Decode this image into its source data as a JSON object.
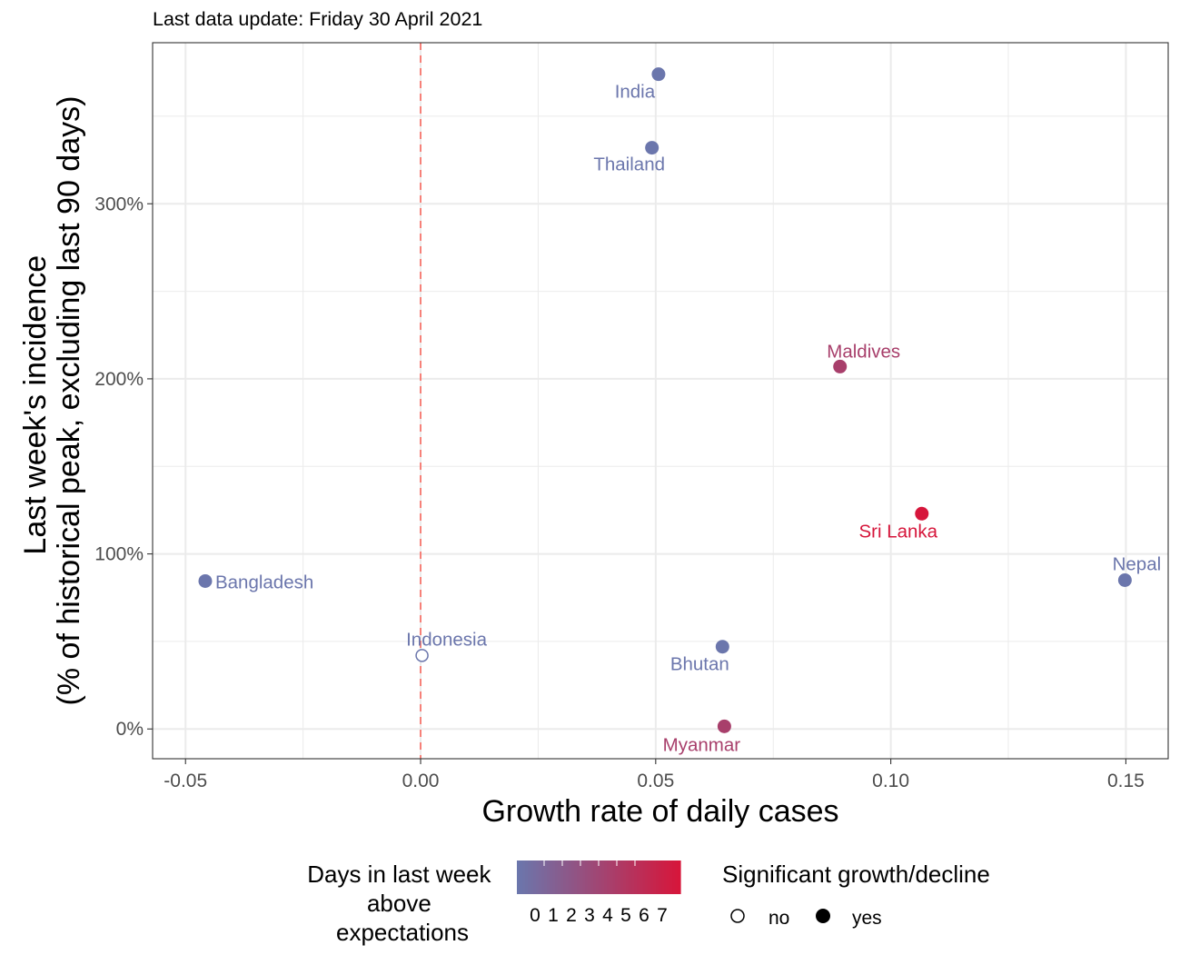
{
  "subtitle": "Last data update: Friday 30 April 2021",
  "chart_data": {
    "type": "scatter",
    "xlabel": "Growth rate of daily cases",
    "ylabel_line1": "Last week's incidence",
    "ylabel_line2": "(% of historical peak, excluding last 90 days)",
    "xlim": [
      -0.057,
      0.159
    ],
    "ylim": [
      -17,
      392
    ],
    "x_ticks": [
      -0.05,
      0.0,
      0.05,
      0.1,
      0.15
    ],
    "x_tick_labels": [
      "-0.05",
      "0.00",
      "0.05",
      "0.10",
      "0.15"
    ],
    "y_ticks": [
      0,
      100,
      200,
      300
    ],
    "y_tick_labels": [
      "0%",
      "100%",
      "200%",
      "300%"
    ],
    "reference_line": {
      "x": 0,
      "color": "#f8766d",
      "style": "dashed"
    },
    "grid": true,
    "points": [
      {
        "name": "India",
        "x": 0.0506,
        "y": 374,
        "days": 0,
        "significant": true
      },
      {
        "name": "Thailand",
        "x": 0.0492,
        "y": 332,
        "days": 0,
        "significant": true
      },
      {
        "name": "Maldives",
        "x": 0.0892,
        "y": 207,
        "days": 4,
        "significant": true
      },
      {
        "name": "Sri Lanka",
        "x": 0.1066,
        "y": 123,
        "days": 7,
        "significant": true
      },
      {
        "name": "Nepal",
        "x": 0.1498,
        "y": 85,
        "days": 0,
        "significant": true
      },
      {
        "name": "Bangladesh",
        "x": -0.0458,
        "y": 84.5,
        "days": 0,
        "significant": true
      },
      {
        "name": "Indonesia",
        "x": 0.0003,
        "y": 42,
        "days": 0,
        "significant": false
      },
      {
        "name": "Bhutan",
        "x": 0.0642,
        "y": 47,
        "days": 0,
        "significant": true
      },
      {
        "name": "Myanmar",
        "x": 0.0646,
        "y": 1.5,
        "days": 4,
        "significant": true
      }
    ],
    "legend": {
      "color_title_lines": [
        "Days in last week",
        "above",
        "expectations"
      ],
      "color_labels": [
        "0",
        "1",
        "2",
        "3",
        "4",
        "5",
        "6",
        "7"
      ],
      "color_low": "#6b76ac",
      "color_high": "#d6163b",
      "shape_title": "Significant growth/decline",
      "shape_labels": [
        "no",
        "yes"
      ],
      "position": "bottom"
    }
  }
}
